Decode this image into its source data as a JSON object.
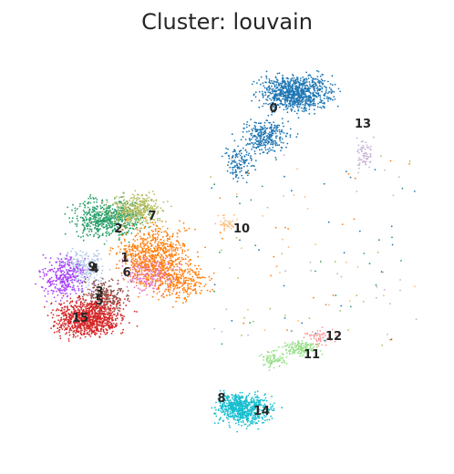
{
  "chart_data": {
    "type": "scatter",
    "title": "Cluster: louvain",
    "xlabel": "",
    "ylabel": "",
    "grid": false,
    "legend": "on data",
    "colors": {
      "0": "#1f77b4",
      "1": "#ff7f0e",
      "2": "#279e68",
      "3": "#d62728",
      "4": "#aa40fc",
      "5": "#8c564b",
      "6": "#e377c2",
      "7": "#b5bd61",
      "8": "#17becf",
      "9": "#aec7e8",
      "10": "#ffbb78",
      "11": "#98df8a",
      "12": "#ff9896",
      "13": "#c5b0d5",
      "14": "#c49c94",
      "15": "#f7b6d2"
    },
    "clusters": [
      "0",
      "1",
      "2",
      "3",
      "4",
      "5",
      "6",
      "7",
      "8",
      "9",
      "10",
      "11",
      "12",
      "13",
      "14",
      "15"
    ],
    "label_text": {
      "0": "0",
      "1": "1",
      "2": "2",
      "3": "3",
      "4": "4",
      "5": "5",
      "6": "6",
      "7": "7",
      "8": "8",
      "9": "9",
      "10": "10",
      "11": "11",
      "12": "12",
      "13": "13",
      "14": "14",
      "15": "15"
    }
  }
}
